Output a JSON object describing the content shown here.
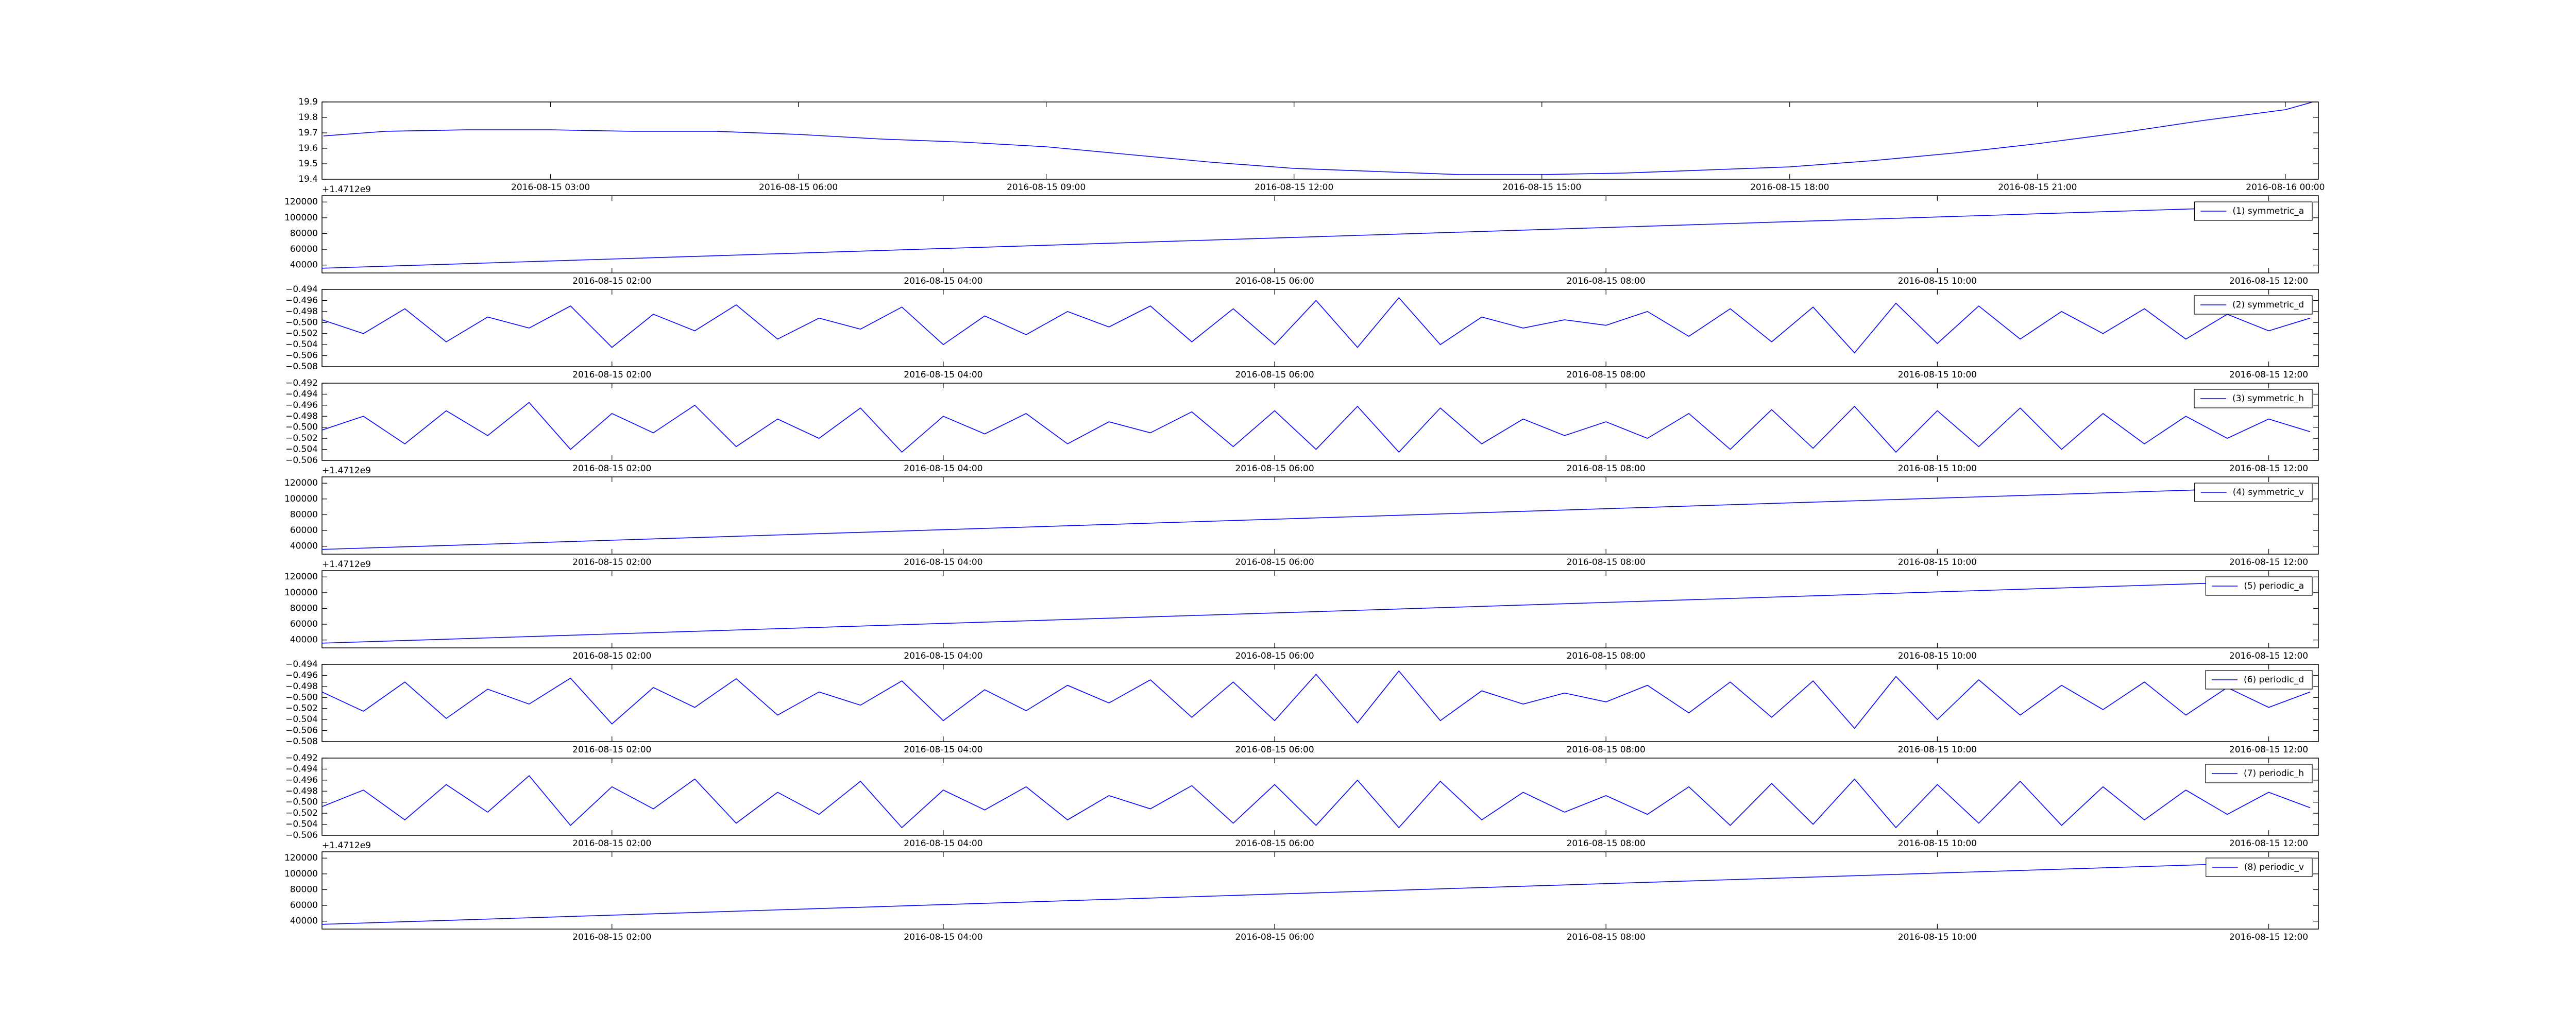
{
  "chart_data": [
    {
      "type": "line",
      "offset_text": "+1.4712e9",
      "x": [
        "2016-08-15 00:15",
        "2016-08-15 01:00",
        "2016-08-15 02:00",
        "2016-08-15 03:00",
        "2016-08-15 04:00",
        "2016-08-15 05:00",
        "2016-08-15 06:00",
        "2016-08-15 07:00",
        "2016-08-15 08:00",
        "2016-08-15 09:00",
        "2016-08-15 10:00",
        "2016-08-15 11:00",
        "2016-08-15 12:00",
        "2016-08-15 13:00",
        "2016-08-15 14:00",
        "2016-08-15 15:00",
        "2016-08-15 16:00",
        "2016-08-15 17:00",
        "2016-08-15 18:00",
        "2016-08-15 19:00",
        "2016-08-15 20:00",
        "2016-08-15 21:00",
        "2016-08-15 22:00",
        "2016-08-15 23:00",
        "2016-08-16 00:00",
        "2016-08-16 00:20"
      ],
      "series": [
        {
          "color": "#0000ff",
          "values": [
            19.68,
            19.71,
            19.72,
            19.72,
            19.71,
            19.71,
            19.69,
            19.66,
            19.64,
            19.61,
            19.56,
            19.51,
            19.47,
            19.45,
            19.43,
            19.43,
            19.44,
            19.46,
            19.48,
            19.52,
            19.57,
            19.63,
            19.7,
            19.78,
            19.85,
            19.9
          ]
        }
      ],
      "xlim": [
        "2016-08-15 00:14",
        "2016-08-16 00:24"
      ],
      "xticks": [
        "2016-08-15 03:00",
        "2016-08-15 06:00",
        "2016-08-15 09:00",
        "2016-08-15 12:00",
        "2016-08-15 15:00",
        "2016-08-15 18:00",
        "2016-08-15 21:00",
        "2016-08-16 00:00"
      ],
      "ylim": [
        19.4,
        19.9
      ],
      "yticks": [
        19.4,
        19.5,
        19.6,
        19.7,
        19.8,
        19.9
      ]
    },
    {
      "type": "line",
      "legend": "upper right",
      "x": [
        "2016-08-15 00:15",
        "2016-08-15 12:15"
      ],
      "series": [
        {
          "name": "(1) symmetric_a",
          "color": "#0000ff",
          "values": [
            36000,
            116000
          ]
        }
      ],
      "xlim": [
        "2016-08-15 00:15",
        "2016-08-15 12:18"
      ],
      "xticks": [
        "2016-08-15 02:00",
        "2016-08-15 04:00",
        "2016-08-15 06:00",
        "2016-08-15 08:00",
        "2016-08-15 10:00",
        "2016-08-15 12:00"
      ],
      "ylim": [
        30000,
        128000
      ],
      "yticks": [
        40000,
        60000,
        80000,
        100000,
        120000
      ]
    },
    {
      "type": "line",
      "legend": "upper right",
      "x": [
        "2016-08-15 00:15",
        "2016-08-15 00:30",
        "2016-08-15 00:45",
        "2016-08-15 01:00",
        "2016-08-15 01:15",
        "2016-08-15 01:30",
        "2016-08-15 01:45",
        "2016-08-15 02:00",
        "2016-08-15 02:15",
        "2016-08-15 02:30",
        "2016-08-15 02:45",
        "2016-08-15 03:00",
        "2016-08-15 03:15",
        "2016-08-15 03:30",
        "2016-08-15 03:45",
        "2016-08-15 04:00",
        "2016-08-15 04:15",
        "2016-08-15 04:30",
        "2016-08-15 04:45",
        "2016-08-15 05:00",
        "2016-08-15 05:15",
        "2016-08-15 05:30",
        "2016-08-15 05:45",
        "2016-08-15 06:00",
        "2016-08-15 06:15",
        "2016-08-15 06:30",
        "2016-08-15 06:45",
        "2016-08-15 07:00",
        "2016-08-15 07:15",
        "2016-08-15 07:30",
        "2016-08-15 07:45",
        "2016-08-15 08:00",
        "2016-08-15 08:15",
        "2016-08-15 08:30",
        "2016-08-15 08:45",
        "2016-08-15 09:00",
        "2016-08-15 09:15",
        "2016-08-15 09:30",
        "2016-08-15 09:45",
        "2016-08-15 10:00",
        "2016-08-15 10:15",
        "2016-08-15 10:30",
        "2016-08-15 10:45",
        "2016-08-15 11:00",
        "2016-08-15 11:15",
        "2016-08-15 11:30",
        "2016-08-15 11:45",
        "2016-08-15 12:00",
        "2016-08-15 12:15"
      ],
      "series": [
        {
          "name": "(2) symmetric_d",
          "color": "#0000ff",
          "values": [
            -0.4995,
            -0.502,
            -0.4975,
            -0.5035,
            -0.499,
            -0.501,
            -0.497,
            -0.5045,
            -0.4985,
            -0.5015,
            -0.4968,
            -0.503,
            -0.4992,
            -0.5012,
            -0.4972,
            -0.504,
            -0.4988,
            -0.5022,
            -0.498,
            -0.5008,
            -0.497,
            -0.5035,
            -0.4975,
            -0.504,
            -0.496,
            -0.5045,
            -0.4955,
            -0.504,
            -0.499,
            -0.501,
            -0.4995,
            -0.5005,
            -0.498,
            -0.5025,
            -0.4975,
            -0.5035,
            -0.4972,
            -0.5055,
            -0.4965,
            -0.5038,
            -0.497,
            -0.503,
            -0.498,
            -0.502,
            -0.4975,
            -0.503,
            -0.4985,
            -0.5015,
            -0.4992
          ]
        }
      ],
      "xlim": [
        "2016-08-15 00:15",
        "2016-08-15 12:18"
      ],
      "xticks": [
        "2016-08-15 02:00",
        "2016-08-15 04:00",
        "2016-08-15 06:00",
        "2016-08-15 08:00",
        "2016-08-15 10:00",
        "2016-08-15 12:00"
      ],
      "ylim": [
        -0.508,
        -0.494
      ],
      "yticks": [
        {
          "value": -0.508,
          "label": "−0.508"
        },
        {
          "value": -0.506,
          "label": "−0.506"
        },
        {
          "value": -0.504,
          "label": "−0.504"
        },
        {
          "value": -0.502,
          "label": "−0.502"
        },
        {
          "value": -0.5,
          "label": "−0.500"
        },
        {
          "value": -0.498,
          "label": "−0.498"
        },
        {
          "value": -0.496,
          "label": "−0.496"
        },
        {
          "value": -0.494,
          "label": "−0.494"
        }
      ]
    },
    {
      "type": "line",
      "legend": "upper right",
      "offset_text": "+1.4712e9",
      "x": [
        "2016-08-15 00:15",
        "2016-08-15 00:30",
        "2016-08-15 00:45",
        "2016-08-15 01:00",
        "2016-08-15 01:15",
        "2016-08-15 01:30",
        "2016-08-15 01:45",
        "2016-08-15 02:00",
        "2016-08-15 02:15",
        "2016-08-15 02:30",
        "2016-08-15 02:45",
        "2016-08-15 03:00",
        "2016-08-15 03:15",
        "2016-08-15 03:30",
        "2016-08-15 03:45",
        "2016-08-15 04:00",
        "2016-08-15 04:15",
        "2016-08-15 04:30",
        "2016-08-15 04:45",
        "2016-08-15 05:00",
        "2016-08-15 05:15",
        "2016-08-15 05:30",
        "2016-08-15 05:45",
        "2016-08-15 06:00",
        "2016-08-15 06:15",
        "2016-08-15 06:30",
        "2016-08-15 06:45",
        "2016-08-15 07:00",
        "2016-08-15 07:15",
        "2016-08-15 07:30",
        "2016-08-15 07:45",
        "2016-08-15 08:00",
        "2016-08-15 08:15",
        "2016-08-15 08:30",
        "2016-08-15 08:45",
        "2016-08-15 09:00",
        "2016-08-15 09:15",
        "2016-08-15 09:30",
        "2016-08-15 09:45",
        "2016-08-15 10:00",
        "2016-08-15 10:15",
        "2016-08-15 10:30",
        "2016-08-15 10:45",
        "2016-08-15 11:00",
        "2016-08-15 11:15",
        "2016-08-15 11:30",
        "2016-08-15 11:45",
        "2016-08-15 12:00",
        "2016-08-15 12:15"
      ],
      "series": [
        {
          "name": "(3) symmetric_h",
          "color": "#0000ff",
          "values": [
            -0.5005,
            -0.498,
            -0.503,
            -0.497,
            -0.5015,
            -0.4955,
            -0.504,
            -0.4975,
            -0.501,
            -0.496,
            -0.5035,
            -0.4985,
            -0.502,
            -0.4965,
            -0.5045,
            -0.498,
            -0.5012,
            -0.4975,
            -0.503,
            -0.499,
            -0.501,
            -0.4972,
            -0.5035,
            -0.497,
            -0.504,
            -0.4962,
            -0.5045,
            -0.4965,
            -0.503,
            -0.4985,
            -0.5015,
            -0.499,
            -0.502,
            -0.4975,
            -0.504,
            -0.4968,
            -0.5038,
            -0.4962,
            -0.5045,
            -0.497,
            -0.5035,
            -0.4965,
            -0.504,
            -0.4975,
            -0.503,
            -0.498,
            -0.502,
            -0.4985,
            -0.5008
          ]
        }
      ],
      "xlim": [
        "2016-08-15 00:15",
        "2016-08-15 12:18"
      ],
      "xticks": [
        "2016-08-15 02:00",
        "2016-08-15 04:00",
        "2016-08-15 06:00",
        "2016-08-15 08:00",
        "2016-08-15 10:00",
        "2016-08-15 12:00"
      ],
      "ylim": [
        -0.506,
        -0.492
      ],
      "yticks": [
        {
          "value": -0.506,
          "label": "−0.506"
        },
        {
          "value": -0.504,
          "label": "−0.504"
        },
        {
          "value": -0.502,
          "label": "−0.502"
        },
        {
          "value": -0.5,
          "label": "−0.500"
        },
        {
          "value": -0.498,
          "label": "−0.498"
        },
        {
          "value": -0.496,
          "label": "−0.496"
        },
        {
          "value": -0.494,
          "label": "−0.494"
        },
        {
          "value": -0.492,
          "label": "−0.492"
        }
      ]
    },
    {
      "type": "line",
      "legend": "upper right",
      "offset_text": "+1.4712e9",
      "x": [
        "2016-08-15 00:15",
        "2016-08-15 12:15"
      ],
      "series": [
        {
          "name": "(4) symmetric_v",
          "color": "#0000ff",
          "values": [
            36000,
            116000
          ]
        }
      ],
      "xlim": [
        "2016-08-15 00:15",
        "2016-08-15 12:18"
      ],
      "xticks": [
        "2016-08-15 02:00",
        "2016-08-15 04:00",
        "2016-08-15 06:00",
        "2016-08-15 08:00",
        "2016-08-15 10:00",
        "2016-08-15 12:00"
      ],
      "ylim": [
        30000,
        128000
      ],
      "yticks": [
        40000,
        60000,
        80000,
        100000,
        120000
      ]
    },
    {
      "type": "line",
      "legend": "upper right",
      "x": [
        "2016-08-15 00:15",
        "2016-08-15 12:15"
      ],
      "series": [
        {
          "name": "(5) periodic_a",
          "color": "#0000ff",
          "values": [
            36000,
            116000
          ]
        }
      ],
      "xlim": [
        "2016-08-15 00:15",
        "2016-08-15 12:18"
      ],
      "xticks": [
        "2016-08-15 02:00",
        "2016-08-15 04:00",
        "2016-08-15 06:00",
        "2016-08-15 08:00",
        "2016-08-15 10:00",
        "2016-08-15 12:00"
      ],
      "ylim": [
        30000,
        128000
      ],
      "yticks": [
        40000,
        60000,
        80000,
        100000,
        120000
      ]
    },
    {
      "type": "line",
      "legend": "upper right",
      "x": [
        "2016-08-15 00:15",
        "2016-08-15 00:30",
        "2016-08-15 00:45",
        "2016-08-15 01:00",
        "2016-08-15 01:15",
        "2016-08-15 01:30",
        "2016-08-15 01:45",
        "2016-08-15 02:00",
        "2016-08-15 02:15",
        "2016-08-15 02:30",
        "2016-08-15 02:45",
        "2016-08-15 03:00",
        "2016-08-15 03:15",
        "2016-08-15 03:30",
        "2016-08-15 03:45",
        "2016-08-15 04:00",
        "2016-08-15 04:15",
        "2016-08-15 04:30",
        "2016-08-15 04:45",
        "2016-08-15 05:00",
        "2016-08-15 05:15",
        "2016-08-15 05:30",
        "2016-08-15 05:45",
        "2016-08-15 06:00",
        "2016-08-15 06:15",
        "2016-08-15 06:30",
        "2016-08-15 06:45",
        "2016-08-15 07:00",
        "2016-08-15 07:15",
        "2016-08-15 07:30",
        "2016-08-15 07:45",
        "2016-08-15 08:00",
        "2016-08-15 08:15",
        "2016-08-15 08:30",
        "2016-08-15 08:45",
        "2016-08-15 09:00",
        "2016-08-15 09:15",
        "2016-08-15 09:30",
        "2016-08-15 09:45",
        "2016-08-15 10:00",
        "2016-08-15 10:15",
        "2016-08-15 10:30",
        "2016-08-15 10:45",
        "2016-08-15 11:00",
        "2016-08-15 11:15",
        "2016-08-15 11:30",
        "2016-08-15 11:45",
        "2016-08-15 12:00",
        "2016-08-15 12:15"
      ],
      "series": [
        {
          "name": "(6) periodic_d",
          "color": "#0000ff",
          "values": [
            -0.499,
            -0.5025,
            -0.4972,
            -0.5038,
            -0.4985,
            -0.5012,
            -0.4965,
            -0.5048,
            -0.4982,
            -0.5018,
            -0.4966,
            -0.5032,
            -0.499,
            -0.5014,
            -0.497,
            -0.5042,
            -0.4986,
            -0.5024,
            -0.4978,
            -0.501,
            -0.4968,
            -0.5036,
            -0.4972,
            -0.5042,
            -0.4958,
            -0.5046,
            -0.4952,
            -0.5042,
            -0.4988,
            -0.5012,
            -0.4992,
            -0.5008,
            -0.4978,
            -0.5028,
            -0.4972,
            -0.5036,
            -0.497,
            -0.5056,
            -0.4962,
            -0.504,
            -0.4968,
            -0.5032,
            -0.4978,
            -0.5022,
            -0.4972,
            -0.5032,
            -0.4982,
            -0.5018,
            -0.499
          ]
        }
      ],
      "xlim": [
        "2016-08-15 00:15",
        "2016-08-15 12:18"
      ],
      "xticks": [
        "2016-08-15 02:00",
        "2016-08-15 04:00",
        "2016-08-15 06:00",
        "2016-08-15 08:00",
        "2016-08-15 10:00",
        "2016-08-15 12:00"
      ],
      "ylim": [
        -0.508,
        -0.494
      ],
      "yticks": [
        {
          "value": -0.508,
          "label": "−0.508"
        },
        {
          "value": -0.506,
          "label": "−0.506"
        },
        {
          "value": -0.504,
          "label": "−0.504"
        },
        {
          "value": -0.502,
          "label": "−0.502"
        },
        {
          "value": -0.5,
          "label": "−0.500"
        },
        {
          "value": -0.498,
          "label": "−0.498"
        },
        {
          "value": -0.496,
          "label": "−0.496"
        },
        {
          "value": -0.494,
          "label": "−0.494"
        }
      ]
    },
    {
      "type": "line",
      "legend": "upper right",
      "offset_text": "+1.4712e9",
      "x": [
        "2016-08-15 00:15",
        "2016-08-15 00:30",
        "2016-08-15 00:45",
        "2016-08-15 01:00",
        "2016-08-15 01:15",
        "2016-08-15 01:30",
        "2016-08-15 01:45",
        "2016-08-15 02:00",
        "2016-08-15 02:15",
        "2016-08-15 02:30",
        "2016-08-15 02:45",
        "2016-08-15 03:00",
        "2016-08-15 03:15",
        "2016-08-15 03:30",
        "2016-08-15 03:45",
        "2016-08-15 04:00",
        "2016-08-15 04:15",
        "2016-08-15 04:30",
        "2016-08-15 04:45",
        "2016-08-15 05:00",
        "2016-08-15 05:15",
        "2016-08-15 05:30",
        "2016-08-15 05:45",
        "2016-08-15 06:00",
        "2016-08-15 06:15",
        "2016-08-15 06:30",
        "2016-08-15 06:45",
        "2016-08-15 07:00",
        "2016-08-15 07:15",
        "2016-08-15 07:30",
        "2016-08-15 07:45",
        "2016-08-15 08:00",
        "2016-08-15 08:15",
        "2016-08-15 08:30",
        "2016-08-15 08:45",
        "2016-08-15 09:00",
        "2016-08-15 09:15",
        "2016-08-15 09:30",
        "2016-08-15 09:45",
        "2016-08-15 10:00",
        "2016-08-15 10:15",
        "2016-08-15 10:30",
        "2016-08-15 10:45",
        "2016-08-15 11:00",
        "2016-08-15 11:15",
        "2016-08-15 11:30",
        "2016-08-15 11:45",
        "2016-08-15 12:00",
        "2016-08-15 12:15"
      ],
      "series": [
        {
          "name": "(7) periodic_h",
          "color": "#0000ff",
          "values": [
            -0.5008,
            -0.4978,
            -0.5032,
            -0.4968,
            -0.5018,
            -0.4952,
            -0.5042,
            -0.4972,
            -0.5012,
            -0.4958,
            -0.5038,
            -0.4982,
            -0.5022,
            -0.4962,
            -0.5046,
            -0.4978,
            -0.5014,
            -0.4972,
            -0.5032,
            -0.4988,
            -0.5012,
            -0.497,
            -0.5038,
            -0.4968,
            -0.5042,
            -0.496,
            -0.5046,
            -0.4962,
            -0.5032,
            -0.4982,
            -0.5018,
            -0.4988,
            -0.5022,
            -0.4972,
            -0.5042,
            -0.4966,
            -0.504,
            -0.4958,
            -0.5046,
            -0.4968,
            -0.5038,
            -0.4962,
            -0.5042,
            -0.4972,
            -0.5032,
            -0.4978,
            -0.5022,
            -0.4982,
            -0.501
          ]
        }
      ],
      "xlim": [
        "2016-08-15 00:15",
        "2016-08-15 12:18"
      ],
      "xticks": [
        "2016-08-15 02:00",
        "2016-08-15 04:00",
        "2016-08-15 06:00",
        "2016-08-15 08:00",
        "2016-08-15 10:00",
        "2016-08-15 12:00"
      ],
      "ylim": [
        -0.506,
        -0.492
      ],
      "yticks": [
        {
          "value": -0.506,
          "label": "−0.506"
        },
        {
          "value": -0.504,
          "label": "−0.504"
        },
        {
          "value": -0.502,
          "label": "−0.502"
        },
        {
          "value": -0.5,
          "label": "−0.500"
        },
        {
          "value": -0.498,
          "label": "−0.498"
        },
        {
          "value": -0.496,
          "label": "−0.496"
        },
        {
          "value": -0.494,
          "label": "−0.494"
        },
        {
          "value": -0.492,
          "label": "−0.492"
        }
      ]
    },
    {
      "type": "line",
      "legend": "upper right",
      "x": [
        "2016-08-15 00:15",
        "2016-08-15 12:15"
      ],
      "series": [
        {
          "name": "(8) periodic_v",
          "color": "#0000ff",
          "values": [
            36000,
            116000
          ]
        }
      ],
      "xlim": [
        "2016-08-15 00:15",
        "2016-08-15 12:18"
      ],
      "xticks": [
        "2016-08-15 02:00",
        "2016-08-15 04:00",
        "2016-08-15 06:00",
        "2016-08-15 08:00",
        "2016-08-15 10:00",
        "2016-08-15 12:00"
      ],
      "ylim": [
        30000,
        128000
      ],
      "yticks": [
        40000,
        60000,
        80000,
        100000,
        120000
      ]
    }
  ]
}
